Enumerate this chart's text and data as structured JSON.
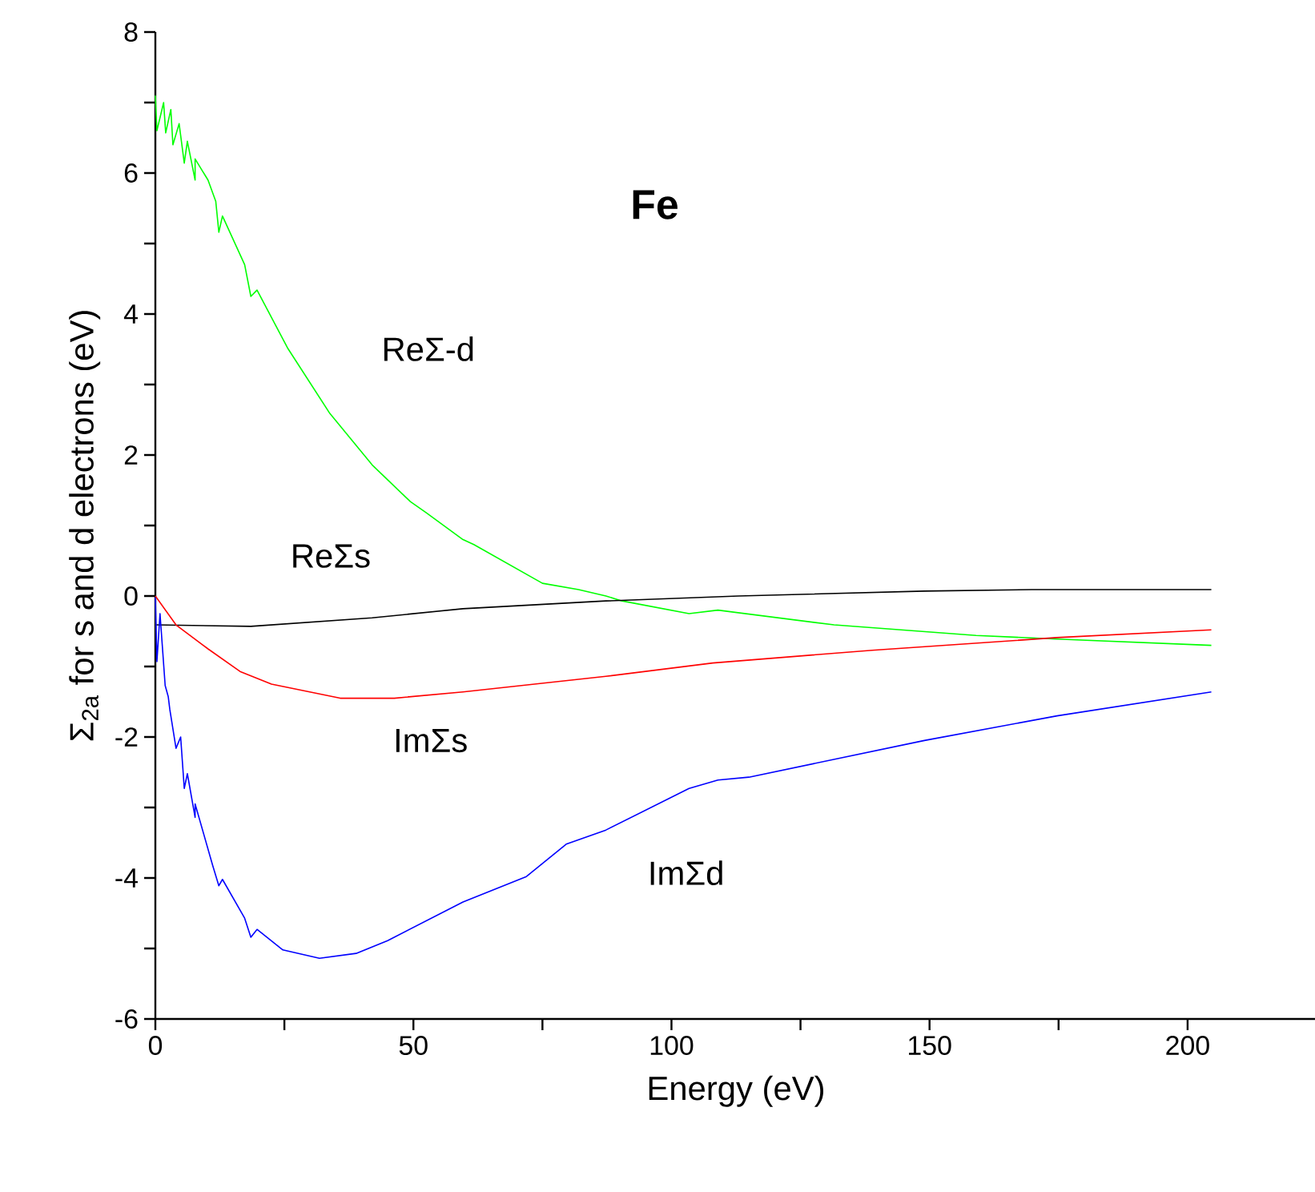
{
  "chart_data": {
    "type": "line",
    "title": "**Fe**",
    "xlabel": "Energy (eV)",
    "ylabel": "Σ$_{2a}$ for s and d electrons (eV)",
    "xlim": [
      0,
      225
    ],
    "ylim": [
      -6,
      8
    ],
    "xticks": [
      0,
      {
        "value": 25,
        "label": null
      },
      50,
      {
        "value": 75,
        "label": null
      },
      100,
      {
        "value": 125,
        "label": null
      },
      150,
      {
        "value": 175,
        "label": null
      },
      200
    ],
    "yticks": [
      -6,
      {
        "value": -5,
        "label": null
      },
      -4,
      {
        "value": -3,
        "label": null
      },
      -2,
      {
        "value": -1,
        "label": null
      },
      0,
      {
        "value": 1,
        "label": null
      },
      2,
      {
        "value": 3,
        "label": null
      },
      4,
      {
        "value": 5,
        "label": null
      },
      6,
      {
        "value": 7,
        "label": null
      },
      8
    ],
    "marker": "none",
    "line_style": "solid",
    "series": [
      {
        "color": "#00ff00",
        "x": [
          0,
          0.3,
          1.6,
          2,
          3,
          3.4,
          4.6,
          5.6,
          6.2,
          7.7,
          7.7,
          10.2,
          11.7,
          12.3,
          13,
          17.3,
          18.5,
          19.7,
          25.6,
          33.8,
          42,
          49.4,
          52.5,
          59.6,
          61.7,
          75,
          82,
          87.3,
          90.4,
          103.4,
          109,
          131.5,
          159,
          174.7,
          204.6
        ],
        "values": [
          7.1,
          6.6,
          7.0,
          6.57,
          6.9,
          6.4,
          6.7,
          6.14,
          6.45,
          5.9,
          6.2,
          5.9,
          5.6,
          5.16,
          5.39,
          4.7,
          4.25,
          4.34,
          3.52,
          2.59,
          1.86,
          1.34,
          1.18,
          0.8,
          0.73,
          0.18,
          0.09,
          0.0,
          -0.07,
          -0.25,
          -0.2,
          -0.41,
          -0.56,
          -0.61,
          -0.7
        ]
      },
      {
        "color": "#000000",
        "x": [
          0,
          18.5,
          42,
          59.6,
          87.3,
          113,
          149,
          169.8,
          204.6
        ],
        "values": [
          -0.41,
          -0.43,
          -0.31,
          -0.18,
          -0.07,
          0.0,
          0.07,
          0.09,
          0.09
        ]
      },
      {
        "color": "#ff0000",
        "x": [
          0,
          4,
          10.2,
          16.4,
          22.5,
          35.8,
          46.3,
          59.6,
          87.3,
          108,
          138.9,
          174.7,
          204.6
        ],
        "values": [
          0.0,
          -0.41,
          -0.75,
          -1.07,
          -1.25,
          -1.45,
          -1.45,
          -1.36,
          -1.14,
          -0.95,
          -0.77,
          -0.59,
          -0.48
        ]
      },
      {
        "color": "#0000ff",
        "x": [
          0,
          0.3,
          0.9,
          1.9,
          2.5,
          2.8,
          4,
          4.9,
          5.6,
          6.2,
          7.7,
          7.7,
          11.1,
          12.3,
          13,
          17.3,
          18.5,
          19.7,
          24.7,
          31.8,
          38.9,
          45,
          59.6,
          71.9,
          79.6,
          87.3,
          103.4,
          109,
          115,
          149,
          174.7,
          204.6
        ],
        "values": [
          -0.02,
          -0.93,
          -0.25,
          -1.27,
          -1.43,
          -1.61,
          -2.16,
          -2.0,
          -2.73,
          -2.52,
          -3.14,
          -2.95,
          -3.82,
          -4.11,
          -4.02,
          -4.57,
          -4.84,
          -4.73,
          -5.02,
          -5.14,
          -5.07,
          -4.89,
          -4.34,
          -3.98,
          -3.52,
          -3.32,
          -2.73,
          -2.61,
          -2.57,
          -2.05,
          -1.7,
          -1.36
        ]
      }
    ],
    "annotations": [
      "ReΣ-d",
      "ReΣs",
      "ImΣs",
      "ImΣd"
    ]
  }
}
